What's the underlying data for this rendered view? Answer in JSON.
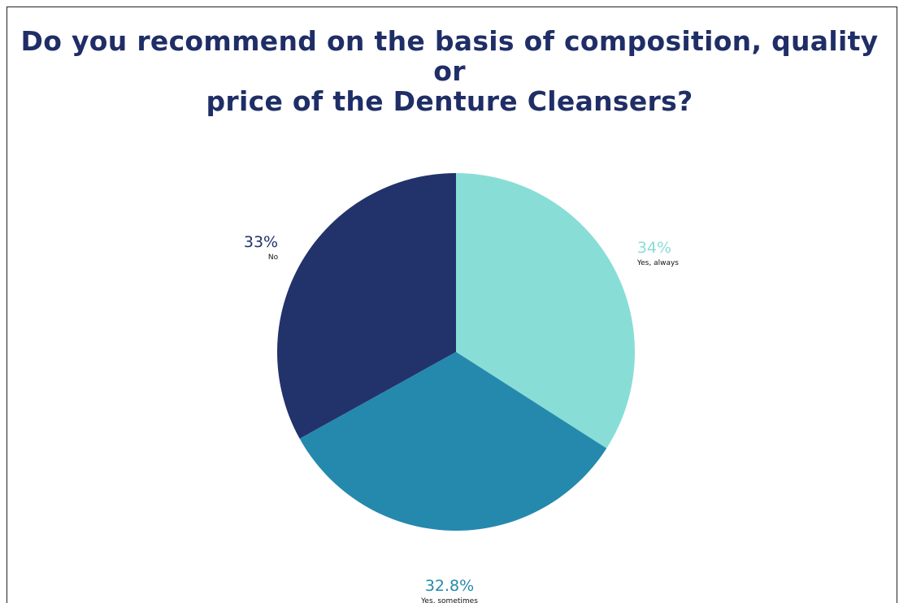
{
  "title_lines": [
    "Do you recommend on the basis of composition, quality or",
    "price of the Denture Cleansers?"
  ],
  "chart_data": {
    "type": "pie",
    "title": "Do you recommend on the basis of composition, quality or price of the Denture Cleansers?",
    "slices": [
      {
        "label": "Yes, always",
        "value": 34,
        "display": "34%",
        "color": "#88ded6"
      },
      {
        "label": "Yes, sometimes",
        "value": 32.8,
        "display": "32.8%",
        "color": "#2589ae"
      },
      {
        "label": "No",
        "value": 33,
        "display": "33%",
        "color": "#22326b"
      }
    ],
    "start_angle_deg": 0,
    "direction": "clockwise",
    "legend": "none",
    "data_labels": "outside"
  }
}
